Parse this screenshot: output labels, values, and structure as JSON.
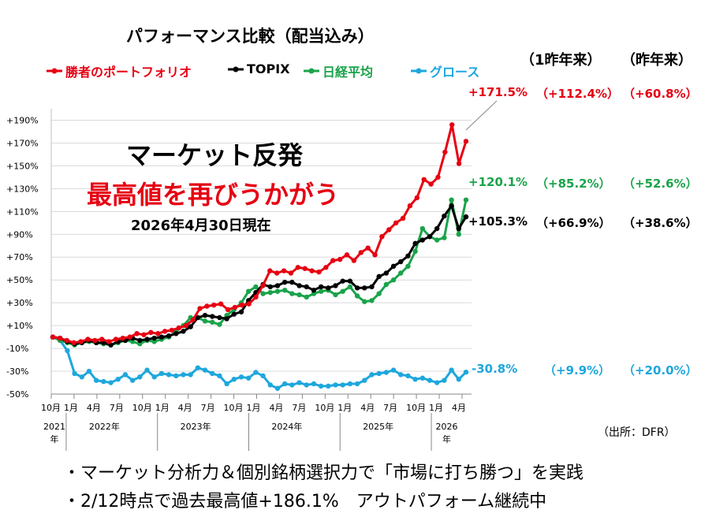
{
  "title": "パフォーマンス比較（配当込み）",
  "headline": "マーケット反発",
  "headline2": "最高値を再びうかがう",
  "as_of": "2026年4月30日現在",
  "period_headers": {
    "one_year_ago": "（1昨年来）",
    "last_year": "（昨年来）"
  },
  "source": "（出所：DFR）",
  "bullets": [
    "・マーケット分析力＆個別銘柄選択力で「市場に打ち勝つ」を実践",
    "・2/12時点で過去最高値+186.1%　アウトパフォーム継続中"
  ],
  "legend": [
    {
      "name": "勝者のポートフォリオ",
      "color": "#e60012"
    },
    {
      "name": "TOPIX",
      "color": "#000000"
    },
    {
      "name": "日経平均",
      "color": "#1aa34a"
    },
    {
      "name": "グロース",
      "color": "#1ea7dd"
    }
  ],
  "end_labels": [
    {
      "series": "勝者のポートフォリオ",
      "total": "+171.5%",
      "since_1y_ago": "（+112.4%）",
      "since_last_year": "（+60.8%）",
      "color": "#e60012"
    },
    {
      "series": "日経平均",
      "total": "+120.1%",
      "since_1y_ago": "（+85.2%）",
      "since_last_year": "（+52.6%）",
      "color": "#1aa34a"
    },
    {
      "series": "TOPIX",
      "total": "+105.3%",
      "since_1y_ago": "（+66.9%）",
      "since_last_year": "（+38.6%）",
      "color": "#000000"
    },
    {
      "series": "グロース",
      "total": "-30.8%",
      "since_1y_ago": "（+9.9%）",
      "since_last_year": "（+20.0%）",
      "color": "#1ea7dd"
    }
  ],
  "chart_data": {
    "type": "line",
    "y_ticks": [
      "+190%",
      "+170%",
      "+150%",
      "+130%",
      "+110%",
      "+90%",
      "+70%",
      "+50%",
      "+30%",
      "+10%",
      "-10%",
      "-30%",
      "-50%"
    ],
    "ylim": [
      -50,
      200
    ],
    "x_ticks": [
      "10月",
      "1月",
      "4月",
      "7月",
      "10月",
      "1月",
      "4月",
      "7月",
      "10月",
      "1月",
      "4月",
      "7月",
      "10月",
      "1月",
      "4月",
      "7月",
      "10月",
      "1月",
      "4月"
    ],
    "year_labels": [
      "2021\n年",
      "2022年",
      "2023年",
      "2024年",
      "2025年",
      "2026\n年"
    ],
    "grid": true,
    "legend_position": "top",
    "series": [
      {
        "name": "勝者のポートフォリオ",
        "color": "#e60012",
        "values": [
          0,
          -1,
          -3,
          -5,
          -4,
          -2,
          -3,
          -2,
          -4,
          -2,
          -1,
          0,
          3,
          2,
          4,
          3,
          5,
          6,
          8,
          10,
          15,
          25,
          27,
          28,
          29,
          24,
          26,
          28,
          29,
          35,
          45,
          58,
          56,
          58,
          56,
          61,
          60,
          58,
          57,
          61,
          67,
          68,
          72,
          67,
          74,
          78,
          72,
          88,
          94,
          100,
          104,
          115,
          122,
          138,
          134,
          140,
          162,
          186,
          152,
          171.5
        ]
      },
      {
        "name": "TOPIX",
        "color": "#000000",
        "values": [
          0,
          -1,
          -4,
          -6,
          -5,
          -3,
          -5,
          -5,
          -7,
          -4,
          -3,
          -1,
          -3,
          -2,
          -1,
          0,
          1,
          3,
          5,
          9,
          17,
          19,
          18,
          17,
          16,
          20,
          22,
          32,
          39,
          46,
          44,
          45,
          48,
          48,
          45,
          44,
          41,
          44,
          43,
          45,
          49,
          49,
          43,
          43,
          44,
          53,
          56,
          62,
          66,
          71,
          82,
          85,
          88,
          95,
          106,
          115,
          95,
          105.3
        ]
      },
      {
        "name": "日経平均",
        "color": "#1aa34a",
        "values": [
          0,
          -3,
          -5,
          -7,
          -5,
          -4,
          -5,
          -6,
          -7,
          -5,
          -3,
          -4,
          -6,
          -3,
          -4,
          -2,
          0,
          5,
          10,
          17,
          17,
          14,
          13,
          11,
          19,
          24,
          30,
          40,
          44,
          38,
          39,
          40,
          41,
          38,
          37,
          35,
          38,
          40,
          41,
          37,
          40,
          44,
          36,
          31,
          32,
          38,
          46,
          50,
          56,
          62,
          75,
          95,
          88,
          85,
          87,
          120.1,
          90,
          120.1
        ]
      },
      {
        "name": "グロース",
        "color": "#1ea7dd",
        "values": [
          0,
          -3,
          -12,
          -32,
          -35,
          -30,
          -38,
          -39,
          -40,
          -37,
          -33,
          -38,
          -35,
          -29,
          -35,
          -32,
          -33,
          -34,
          -33,
          -33,
          -27,
          -29,
          -32,
          -34,
          -41,
          -37,
          -35,
          -36,
          -31,
          -34,
          -42,
          -45,
          -41,
          -42,
          -40,
          -42,
          -41,
          -43,
          -43,
          -42,
          -42,
          -41,
          -41,
          -38,
          -33,
          -32,
          -31,
          -29,
          -33,
          -34,
          -37,
          -36,
          -38,
          -40,
          -38,
          -29,
          -37,
          -30.8
        ]
      }
    ]
  }
}
